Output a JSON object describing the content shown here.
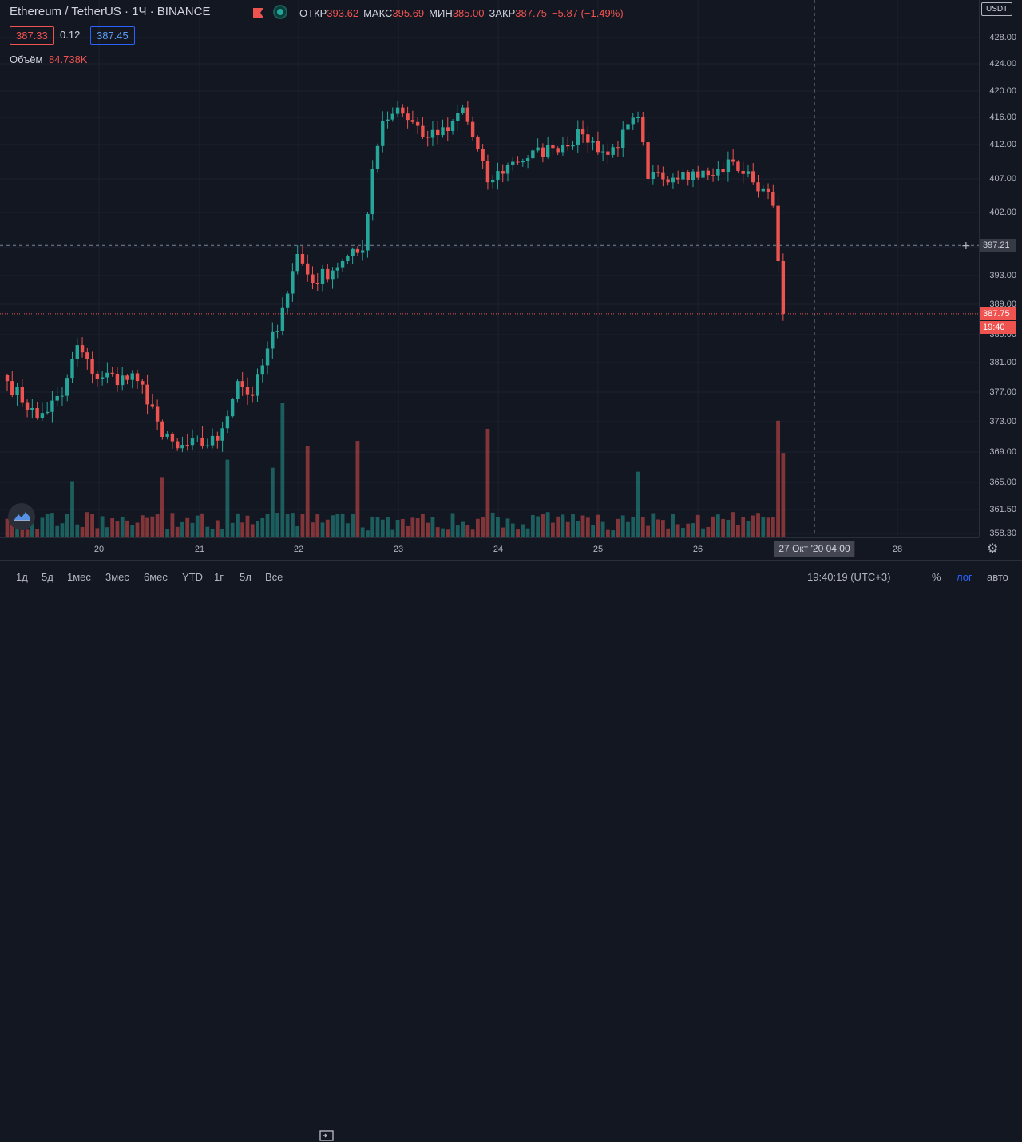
{
  "header": {
    "symbol_title": "Ethereum / TetherUS · 1Ч · BINANCE",
    "symbol": "Ethereum / TetherUS",
    "interval": "1Ч",
    "exchange": "BINANCE",
    "ohlc": [
      {
        "k": "ОТКР",
        "v": "393.62"
      },
      {
        "k": "МАКС",
        "v": "395.69"
      },
      {
        "k": "МИН",
        "v": "385.00"
      },
      {
        "k": "ЗАКР",
        "v": "387.75"
      }
    ],
    "change": "−5.87 (−1.49%)",
    "bid": "387.33",
    "spread": "0.12",
    "ask": "387.45",
    "volume_label": "Объём",
    "volume_value": "84.738K"
  },
  "currency": "USDT",
  "price_tags": {
    "crosshair": "397.21",
    "last": "387.75",
    "countdown": "19:40",
    "crosshair_date": "27 Окт '20   04:00"
  },
  "bottom_bar": {
    "timeframes": [
      "1д",
      "5д",
      "1мес",
      "3мес",
      "6мес",
      "YTD",
      "1г",
      "5л",
      "Все"
    ],
    "clock": "19:40:19 (UTC+3)",
    "percent": "%",
    "log": "лог",
    "auto": "авто"
  },
  "colors": {
    "up": "#26a69a",
    "down": "#ef5350",
    "background": "#131722",
    "grid": "#2a2e39",
    "crosshair": "#758696",
    "accent": "#2962ff"
  },
  "icons": [
    "flag-icon",
    "eye-icon",
    "compare-icon",
    "gear-icon",
    "tradingview-logo-icon"
  ],
  "chart_data": {
    "type": "candlestick",
    "title": "Ethereum / TetherUS",
    "interval": "1Ч",
    "ylim": [
      357,
      431
    ],
    "y_ticks": [
      "428.00",
      "424.00",
      "420.00",
      "416.00",
      "412.00",
      "407.00",
      "402.00",
      "397.00",
      "393.00",
      "389.00",
      "385.00",
      "381.00",
      "377.00",
      "373.00",
      "369.00",
      "365.00",
      "361.50",
      "358.30"
    ],
    "x_ticks": [
      "20",
      "21",
      "22",
      "23",
      "24",
      "25",
      "26",
      "28"
    ],
    "grid": true,
    "volume_label": "Объём",
    "anchors": [
      {
        "t": 0,
        "p": 378.5
      },
      {
        "t": 6,
        "p": 373.5
      },
      {
        "t": 11,
        "p": 376.5
      },
      {
        "t": 14,
        "p": 383.5
      },
      {
        "t": 17,
        "p": 379.5
      },
      {
        "t": 26,
        "p": 378.5
      },
      {
        "t": 29,
        "p": 375.0
      },
      {
        "t": 31,
        "p": 371.0
      },
      {
        "t": 34,
        "p": 369.5
      },
      {
        "t": 42,
        "p": 370.5
      },
      {
        "t": 46,
        "p": 378.5
      },
      {
        "t": 49,
        "p": 376.5
      },
      {
        "t": 55,
        "p": 388.5
      },
      {
        "t": 58,
        "p": 396.0
      },
      {
        "t": 61,
        "p": 392.0
      },
      {
        "t": 67,
        "p": 395.0
      },
      {
        "t": 71,
        "p": 396.5
      },
      {
        "t": 73,
        "p": 408.5
      },
      {
        "t": 75,
        "p": 415.5
      },
      {
        "t": 78,
        "p": 417.5
      },
      {
        "t": 84,
        "p": 413.0
      },
      {
        "t": 88,
        "p": 414.0
      },
      {
        "t": 91,
        "p": 417.5
      },
      {
        "t": 96,
        "p": 406.5
      },
      {
        "t": 101,
        "p": 409.5
      },
      {
        "t": 109,
        "p": 411.5
      },
      {
        "t": 115,
        "p": 413.5
      },
      {
        "t": 120,
        "p": 410.5
      },
      {
        "t": 126,
        "p": 416.0
      },
      {
        "t": 128,
        "p": 407.0
      },
      {
        "t": 135,
        "p": 408.0
      },
      {
        "t": 141,
        "p": 407.5
      },
      {
        "t": 145,
        "p": 409.5
      },
      {
        "t": 149,
        "p": 406.5
      },
      {
        "t": 152,
        "p": 405.0
      },
      {
        "t": 153,
        "p": 403.0
      },
      {
        "t": 154,
        "p": 395.0
      },
      {
        "t": 155,
        "p": 387.75
      }
    ],
    "volume_spikes": [
      {
        "t": 13,
        "v": 0.42
      },
      {
        "t": 31,
        "v": 0.45
      },
      {
        "t": 44,
        "v": 0.58
      },
      {
        "t": 53,
        "v": 0.52
      },
      {
        "t": 55,
        "v": 1.0
      },
      {
        "t": 60,
        "v": 0.68
      },
      {
        "t": 70,
        "v": 0.72
      },
      {
        "t": 96,
        "v": 0.81
      },
      {
        "t": 126,
        "v": 0.49
      },
      {
        "t": 154,
        "v": 0.87
      },
      {
        "t": 155,
        "v": 0.63
      }
    ]
  }
}
